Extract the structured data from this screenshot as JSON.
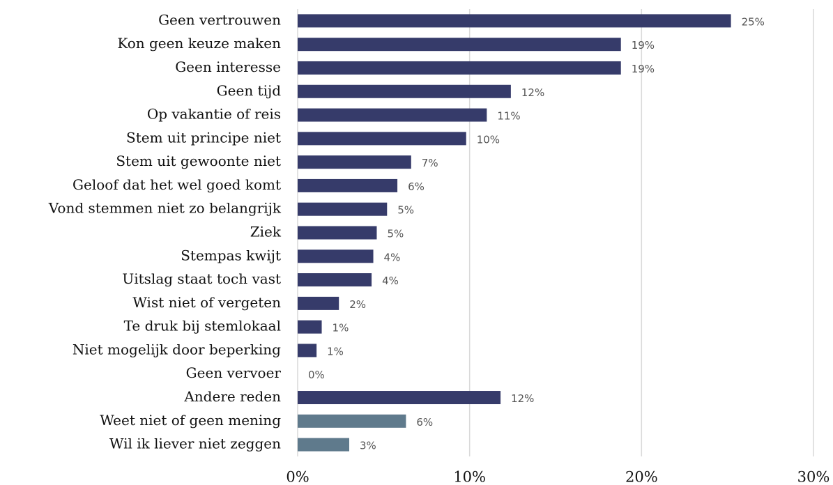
{
  "chart_data": {
    "type": "hbar",
    "categories": [
      "Geen vertrouwen",
      "Kon geen keuze maken",
      "Geen interesse",
      "Geen tijd",
      "Op vakantie of reis",
      "Stem uit principe niet",
      "Stem uit gewoonte niet",
      "Geloof dat het wel goed komt",
      "Vond stemmen niet zo belangrijk",
      "Ziek",
      "Stempas kwijt",
      "Uitslag staat toch vast",
      "Wist niet of vergeten",
      "Te druk bij stemlokaal",
      "Niet mogelijk door beperking",
      "Geen vervoer",
      "Andere reden",
      "Weet niet of geen mening",
      "Wil ik liever niet zeggen"
    ],
    "values": [
      25.2,
      18.8,
      18.8,
      12.4,
      11.0,
      9.8,
      6.6,
      5.8,
      5.2,
      4.6,
      4.4,
      4.3,
      2.4,
      1.4,
      1.1,
      0,
      11.8,
      6.3,
      3.0
    ],
    "value_labels": [
      "25%",
      "19%",
      "19%",
      "12%",
      "11%",
      "10%",
      "7%",
      "6%",
      "5%",
      "5%",
      "4%",
      "4%",
      "2%",
      "1%",
      "1%",
      "0%",
      "12%",
      "6%",
      "3%"
    ],
    "colors": [
      "#363b6a",
      "#363b6a",
      "#363b6a",
      "#363b6a",
      "#363b6a",
      "#363b6a",
      "#363b6a",
      "#363b6a",
      "#363b6a",
      "#363b6a",
      "#363b6a",
      "#363b6a",
      "#363b6a",
      "#363b6a",
      "#363b6a",
      "#363b6a",
      "#363b6a",
      "#5f7a8c",
      "#5f7a8c"
    ],
    "xlim": [
      0,
      30
    ],
    "xticks": [
      {
        "value": 0,
        "label": "0%"
      },
      {
        "value": 10,
        "label": "10%"
      },
      {
        "value": 20,
        "label": "20%"
      },
      {
        "value": 30,
        "label": "30%"
      }
    ],
    "grid": true
  }
}
